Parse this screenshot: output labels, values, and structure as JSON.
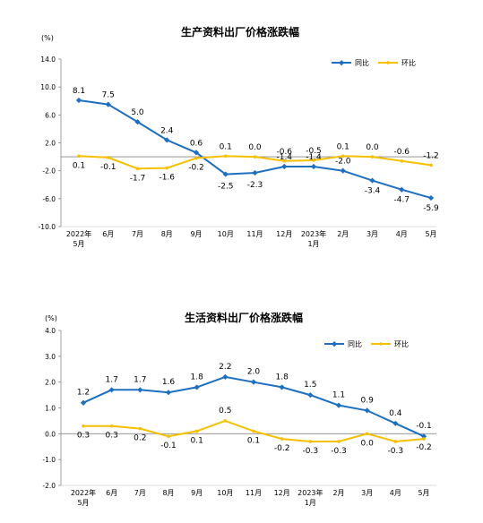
{
  "chart_data": [
    {
      "type": "line",
      "title": "生产资料出厂价格涨跌幅",
      "unit_label": "(%)",
      "categories": [
        "2022年\n5月",
        "6月",
        "7月",
        "8月",
        "9月",
        "10月",
        "11月",
        "12月",
        "2023年\n1月",
        "2月",
        "3月",
        "4月",
        "5月"
      ],
      "ylim": [
        -10.0,
        14.0
      ],
      "yticks": [
        "14.0",
        "10.0",
        "6.0",
        "2.0",
        "-2.0",
        "-6.0",
        "-10.0"
      ],
      "legend_position": "top-right",
      "series": [
        {
          "name": "同比",
          "color": "#1f6fc1",
          "values": [
            8.1,
            7.5,
            5.0,
            2.4,
            0.6,
            -2.5,
            -2.3,
            -1.4,
            -1.4,
            -2.0,
            -3.4,
            -4.7,
            -5.9
          ],
          "labels": [
            "8.1",
            "7.5",
            "5.0",
            "2.4",
            "0.6",
            "-2.5",
            "-2.3",
            "-1.4",
            "-1.4",
            "-2.0",
            "-3.4",
            "-4.7",
            "-5.9"
          ]
        },
        {
          "name": "环比",
          "color": "#f5c000",
          "values": [
            0.1,
            -0.1,
            -1.7,
            -1.6,
            -0.2,
            0.1,
            0.0,
            -0.6,
            -0.5,
            0.1,
            0.0,
            -0.6,
            -1.2
          ],
          "labels": [
            "0.1",
            "-0.1",
            "-1.7",
            "-1.6",
            "-0.2",
            "0.1",
            "0.0",
            "-0.6",
            "-0.5",
            "0.1",
            "0.0",
            "-0.6",
            "-1.2"
          ]
        }
      ]
    },
    {
      "type": "line",
      "title": "生活资料出厂价格涨跌幅",
      "unit_label": "(%)",
      "categories": [
        "2022年\n5月",
        "6月",
        "7月",
        "8月",
        "9月",
        "10月",
        "11月",
        "12月",
        "2023年\n1月",
        "2月",
        "3月",
        "4月",
        "5月"
      ],
      "ylim": [
        -2.0,
        4.0
      ],
      "yticks": [
        "4.0",
        "3.0",
        "2.0",
        "1.0",
        "0.0",
        "-1.0",
        "-2.0"
      ],
      "legend_position": "top-right",
      "series": [
        {
          "name": "同比",
          "color": "#1f6fc1",
          "values": [
            1.2,
            1.7,
            1.7,
            1.6,
            1.8,
            2.2,
            2.0,
            1.8,
            1.5,
            1.1,
            0.9,
            0.4,
            -0.1
          ],
          "labels": [
            "1.2",
            "1.7",
            "1.7",
            "1.6",
            "1.8",
            "2.2",
            "2.0",
            "1.8",
            "1.5",
            "1.1",
            "0.9",
            "0.4",
            "-0.1"
          ]
        },
        {
          "name": "环比",
          "color": "#f5c000",
          "values": [
            0.3,
            0.3,
            0.2,
            -0.1,
            0.1,
            0.5,
            0.1,
            -0.2,
            -0.3,
            -0.3,
            0.0,
            -0.3,
            -0.2
          ],
          "labels": [
            "0.3",
            "0.3",
            "0.2",
            "-0.1",
            "0.1",
            "0.5",
            "0.1",
            "-0.2",
            "-0.3",
            "-0.3",
            "0.0",
            "-0.3",
            "-0.2"
          ]
        }
      ]
    }
  ]
}
